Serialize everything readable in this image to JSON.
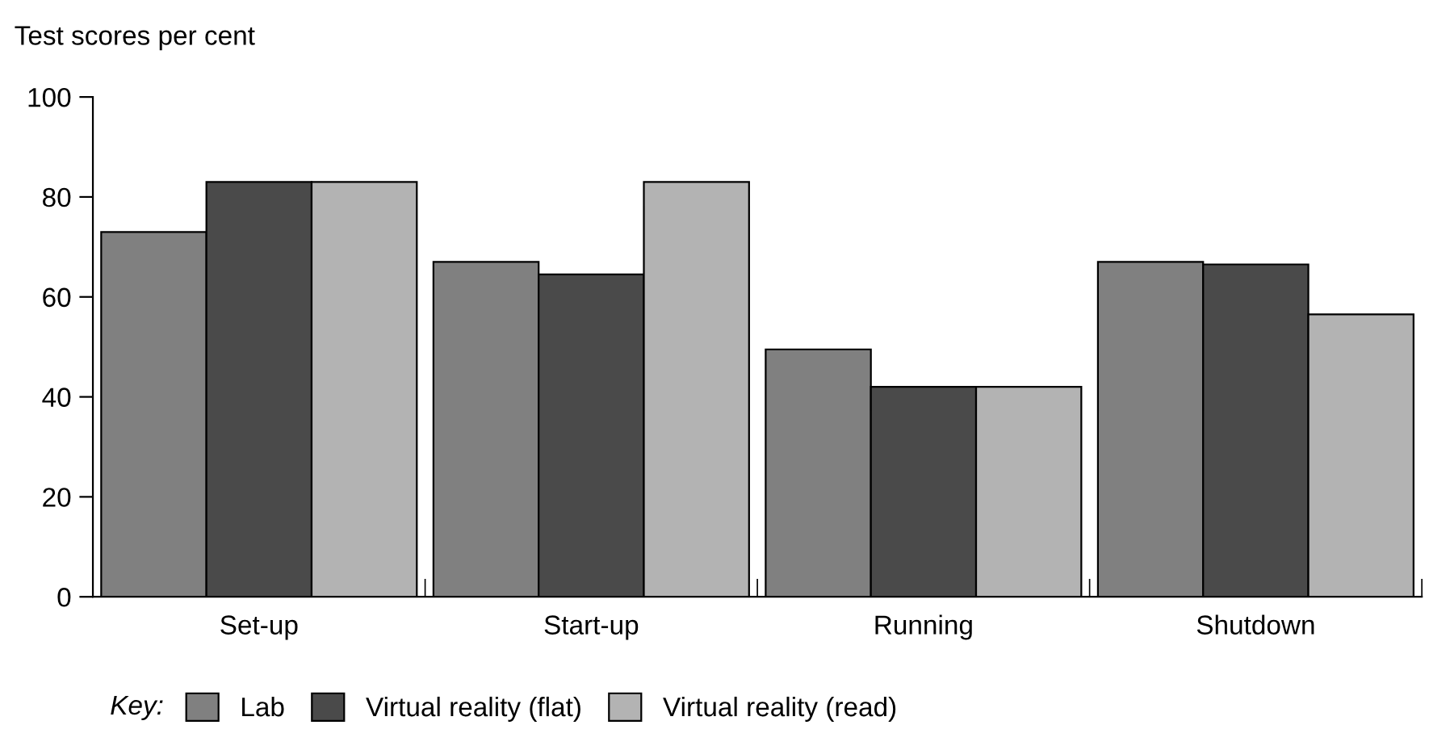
{
  "chart_data": {
    "type": "bar",
    "ylabel": "Test scores per cent",
    "categories": [
      "Set-up",
      "Start-up",
      "Running",
      "Shutdown"
    ],
    "series": [
      {
        "name": "Lab",
        "color": "#808080",
        "values": [
          73,
          67,
          49.5,
          67
        ]
      },
      {
        "name": "Virtual reality (flat)",
        "color": "#4a4a4a",
        "values": [
          83,
          64.5,
          42,
          66.5
        ]
      },
      {
        "name": "Virtual reality (read)",
        "color": "#b3b3b3",
        "values": [
          83,
          83,
          42,
          56.5
        ]
      }
    ],
    "ylim": [
      0,
      100
    ],
    "yticks": [
      0,
      20,
      40,
      60,
      80,
      100
    ],
    "grid": false,
    "legend": "bottom",
    "legend_title": "Key:"
  }
}
